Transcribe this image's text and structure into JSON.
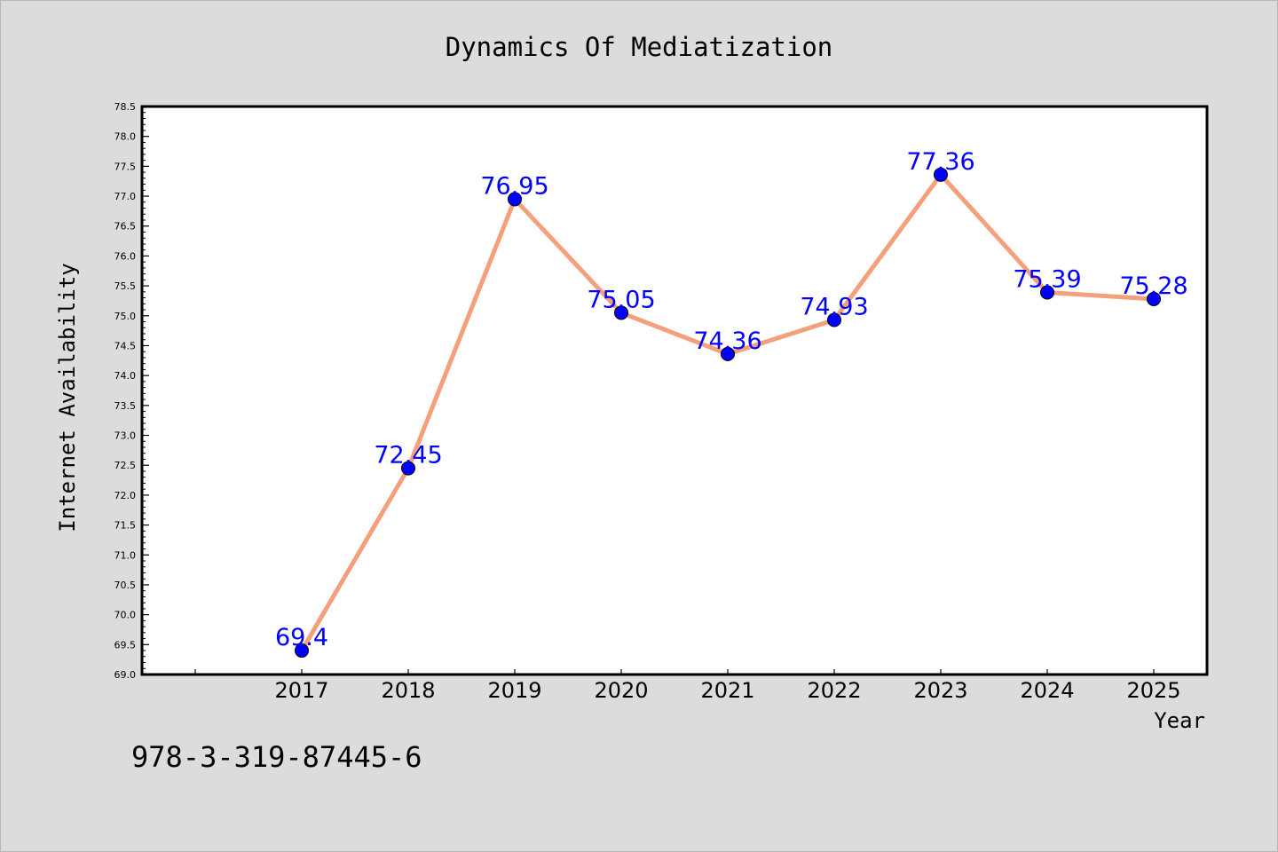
{
  "chart_data": {
    "type": "line",
    "title": "Dynamics Of Mediatization",
    "xlabel": "Year",
    "ylabel": "Internet Availability",
    "categories": [
      "2017",
      "2018",
      "2019",
      "2020",
      "2021",
      "2022",
      "2023",
      "2024",
      "2025"
    ],
    "values": [
      69.4,
      72.45,
      76.95,
      75.05,
      74.36,
      74.93,
      77.36,
      75.39,
      75.28
    ],
    "data_labels": [
      "69.4",
      "72.45",
      "76.95",
      "75.05",
      "74.36",
      "74.93",
      "77.36",
      "75.39",
      "75.28"
    ],
    "ylim": [
      69.0,
      78.5
    ],
    "yticks": [
      "69.0",
      "69.5",
      "70.0",
      "70.5",
      "71.0",
      "71.5",
      "72.0",
      "72.5",
      "73.0",
      "73.5",
      "74.0",
      "74.5",
      "75.0",
      "75.5",
      "76.0",
      "76.5",
      "77.0",
      "77.5",
      "78.0",
      "78.5"
    ],
    "grid": false,
    "line_color": "#f4a07c",
    "marker_color": "#0000ff",
    "label_color": "#0000ff",
    "background_color": "#dcdcdc",
    "plot_background_color": "#ffffff"
  },
  "footer": {
    "isbn": "978-3-319-87445-6"
  }
}
